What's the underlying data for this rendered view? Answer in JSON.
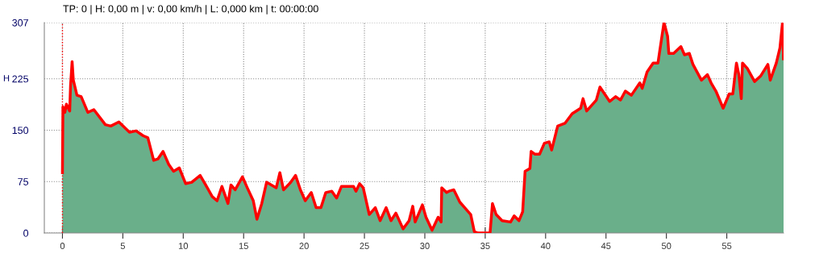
{
  "chart_data": {
    "type": "area",
    "title": "TP: 0 | H: 0,00 m | v: 0,00 km/h | L: 0,000 km | t: 00:00:00",
    "ylabel": "H",
    "xlim": [
      -1.5,
      59.7
    ],
    "ylim": [
      0,
      307
    ],
    "xticks": [
      0,
      5,
      10,
      15,
      20,
      25,
      30,
      35,
      40,
      45,
      50,
      55
    ],
    "yticks": [
      0,
      75,
      150,
      225,
      307
    ],
    "grid": true,
    "legend": false,
    "ref_lines": [
      {
        "axis": "x",
        "value": 0,
        "color": "#ff0000",
        "line_style": "dotted"
      }
    ],
    "series": [
      {
        "color": "#6aaf8a",
        "x": [
          0,
          0.04,
          0.2,
          0.33,
          0.6,
          0.67,
          0.8,
          0.9,
          1.2,
          1.55,
          2.1,
          2.6,
          3.55,
          4.0,
          4.67,
          5.55,
          6.1,
          6.67,
          7.07,
          7.55,
          7.9,
          8.33,
          8.8,
          9.2,
          9.67,
          10.2,
          10.7,
          11.4,
          11.8,
          12.4,
          12.8,
          13.2,
          13.7,
          13.95,
          14.3,
          14.9,
          15.3,
          15.8,
          16.1,
          16.5,
          16.9,
          17.7,
          18.0,
          18.3,
          18.9,
          19.3,
          19.7,
          20.1,
          20.6,
          21.0,
          21.4,
          21.8,
          22.3,
          22.7,
          23.1,
          24.1,
          24.3,
          24.6,
          24.9,
          25.4,
          25.9,
          26.3,
          26.8,
          27.2,
          27.6,
          28.2,
          28.7,
          29.0,
          29.2,
          29.8,
          30.1,
          30.6,
          31.1,
          31.35,
          31.4,
          31.8,
          32.0,
          32.4,
          32.9,
          33.8,
          34.1,
          34.4,
          35.4,
          35.6,
          35.9,
          36.4,
          37.1,
          37.4,
          37.8,
          38.1,
          38.3,
          38.7,
          38.8,
          39.1,
          39.5,
          39.9,
          40.3,
          40.5,
          41.0,
          41.6,
          42.2,
          42.9,
          43.1,
          43.4,
          44.2,
          44.5,
          45.3,
          45.8,
          46.2,
          46.6,
          47.1,
          47.8,
          48.0,
          48.4,
          48.9,
          49.3,
          49.8,
          50.1,
          50.2,
          50.6,
          51.2,
          51.5,
          51.9,
          52.2,
          52.9,
          53.4,
          53.7,
          54.1,
          54.7,
          55.2,
          55.5,
          55.8,
          56.0,
          56.2,
          56.3,
          56.7,
          57.3,
          57.8,
          58.4,
          58.6,
          59.1,
          59.4,
          59.6,
          59.7
        ],
        "values": [
          88,
          184,
          176,
          188,
          178,
          215,
          250,
          223,
          201,
          199,
          176,
          180,
          158,
          156,
          162,
          147,
          149,
          142,
          139,
          106,
          108,
          119,
          100,
          90,
          95,
          72,
          74,
          84,
          72,
          53,
          47,
          68,
          43,
          70,
          63,
          82,
          66,
          47,
          20,
          43,
          74,
          66,
          88,
          63,
          74,
          84,
          63,
          47,
          59,
          37,
          37,
          59,
          61,
          51,
          68,
          68,
          61,
          72,
          66,
          27,
          37,
          18,
          37,
          18,
          29,
          6,
          18,
          39,
          16,
          41,
          23,
          4,
          23,
          16,
          66,
          59,
          61,
          63,
          45,
          27,
          2,
          0,
          0,
          43,
          27,
          18,
          16,
          25,
          18,
          31,
          90,
          94,
          119,
          115,
          115,
          131,
          133,
          121,
          156,
          160,
          174,
          182,
          196,
          178,
          194,
          213,
          192,
          199,
          194,
          207,
          201,
          219,
          211,
          235,
          248,
          248,
          307,
          287,
          262,
          262,
          272,
          260,
          262,
          246,
          223,
          231,
          219,
          207,
          182,
          203,
          203,
          248,
          231,
          196,
          248,
          240,
          221,
          229,
          246,
          223,
          248,
          270,
          305,
          254
        ]
      }
    ]
  }
}
